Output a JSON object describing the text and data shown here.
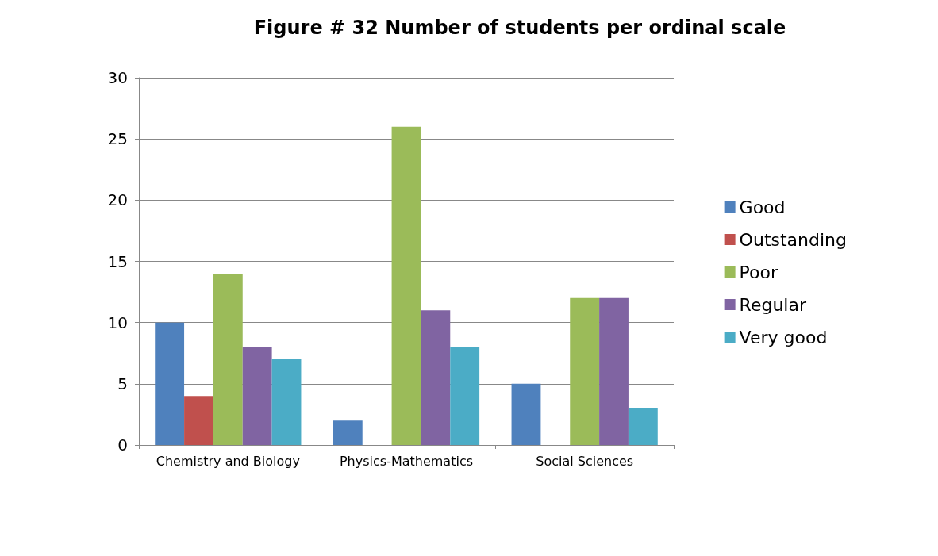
{
  "chart_data": {
    "type": "bar",
    "title": "Figure # 32 Number of students per ordinal scale",
    "categories": [
      "Chemistry and Biology",
      "Physics-Mathematics",
      "Social Sciences"
    ],
    "series": [
      {
        "name": "Good",
        "color": "#4f81bd",
        "values": [
          10,
          2,
          5
        ]
      },
      {
        "name": "Outstanding",
        "color": "#c0504d",
        "values": [
          4,
          0,
          0
        ]
      },
      {
        "name": "Poor",
        "color": "#9bbb59",
        "values": [
          14,
          26,
          12
        ]
      },
      {
        "name": "Regular",
        "color": "#8064a2",
        "values": [
          8,
          11,
          12
        ]
      },
      {
        "name": "Very good",
        "color": "#4bacc6",
        "values": [
          7,
          8,
          3
        ]
      }
    ],
    "ylim": [
      0,
      30
    ],
    "yticks": [
      0,
      5,
      10,
      15,
      20,
      25,
      30
    ],
    "grid": "y",
    "legend": "right"
  }
}
